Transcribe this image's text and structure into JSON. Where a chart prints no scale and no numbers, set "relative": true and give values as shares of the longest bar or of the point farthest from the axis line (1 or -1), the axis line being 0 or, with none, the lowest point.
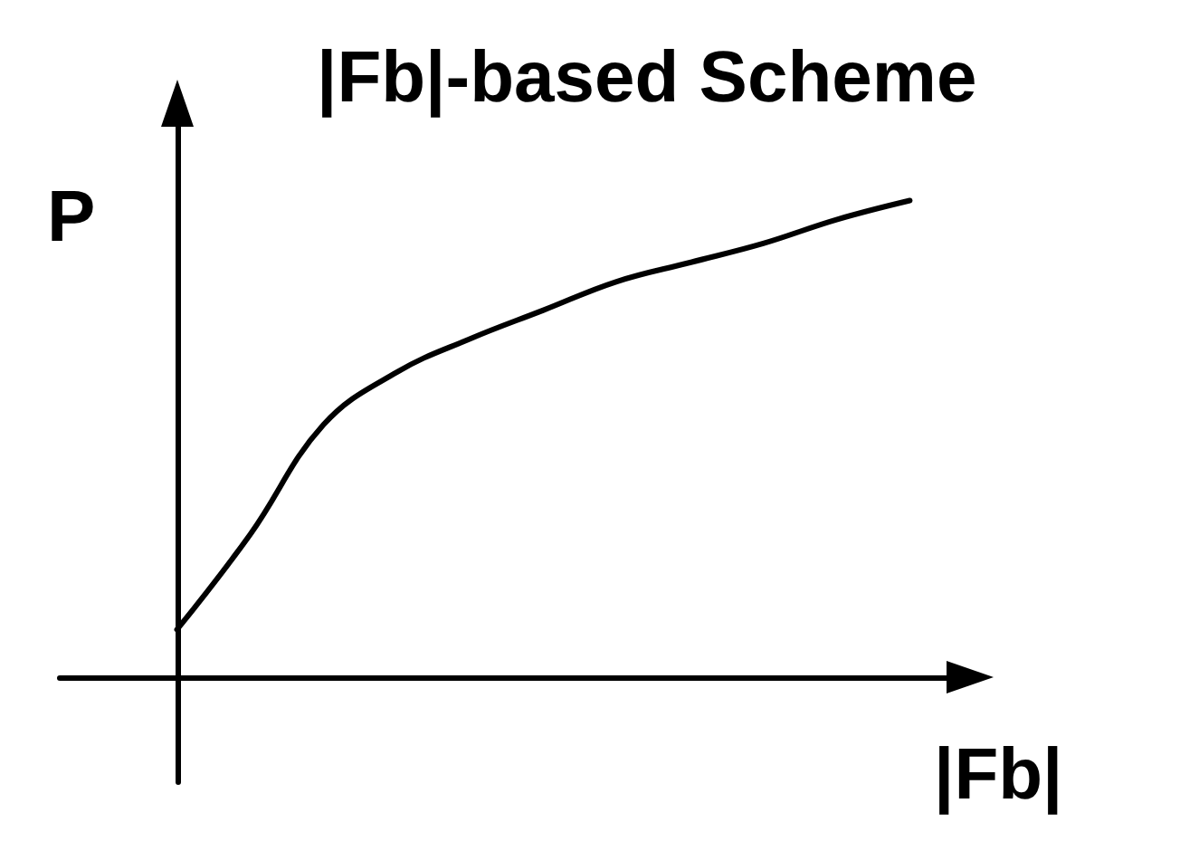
{
  "chart_data": {
    "type": "line",
    "title": "|Fb|-based Scheme",
    "xlabel": "|Fb|",
    "ylabel": "P",
    "relative": true,
    "categories": [
      null,
      null,
      null,
      null,
      null,
      null,
      null,
      null,
      null,
      null,
      null
    ],
    "series": [
      {
        "color": "#000000",
        "values": [
          0.1,
          0.3,
          0.53,
          0.64,
          0.71,
          0.77,
          0.83,
          0.87,
          0.91,
          0.96,
          1.0
        ]
      }
    ],
    "marker": "none",
    "line_style": "solid"
  }
}
